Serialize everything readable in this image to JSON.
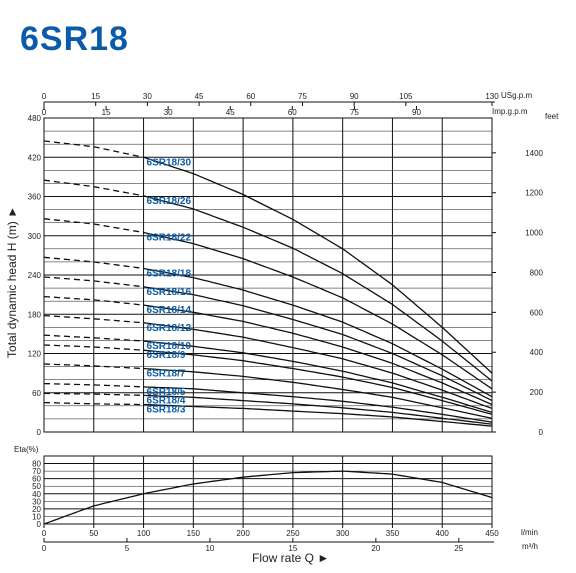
{
  "title": "6SR18",
  "chart_data": [
    {
      "type": "line",
      "ylabel": "Total dynamic head H (m) ►",
      "y_right_label": "feet",
      "ylim": [
        0,
        480
      ],
      "xlim": [
        0,
        450
      ],
      "y_ticks": [
        0,
        60,
        120,
        180,
        240,
        300,
        360,
        420,
        480
      ],
      "y_right_ticks": [
        0,
        200,
        400,
        600,
        800,
        1000,
        1200,
        1400
      ],
      "top_axis_usgpm": {
        "unit": "USg.p.m",
        "ticks": [
          0,
          15,
          30,
          45,
          60,
          75,
          90,
          105,
          130
        ]
      },
      "top_axis_impgpm": {
        "unit": "Imp.g.p.m",
        "ticks": [
          0,
          15,
          30,
          45,
          60,
          75,
          90
        ]
      },
      "x": [
        0,
        50,
        100,
        150,
        200,
        250,
        300,
        350,
        400,
        450
      ],
      "series": [
        {
          "name": "6SR18/30",
          "values": [
            445,
            436,
            420,
            395,
            363,
            325,
            280,
            225,
            160,
            90
          ]
        },
        {
          "name": "6SR18/26",
          "values": [
            385,
            375,
            361,
            341,
            313,
            281,
            242,
            195,
            139,
            78
          ]
        },
        {
          "name": "6SR18/22",
          "values": [
            326,
            318,
            305,
            288,
            265,
            237,
            205,
            165,
            118,
            66
          ]
        },
        {
          "name": "6SR18/18",
          "values": [
            267,
            260,
            250,
            236,
            217,
            194,
            168,
            135,
            96,
            54
          ]
        },
        {
          "name": "6SR18/16",
          "values": [
            237,
            231,
            222,
            210,
            193,
            172,
            149,
            120,
            86,
            48
          ]
        },
        {
          "name": "6SR18/14",
          "values": [
            207,
            202,
            194,
            183,
            169,
            151,
            130,
            105,
            75,
            42
          ]
        },
        {
          "name": "6SR18/12",
          "values": [
            178,
            173,
            167,
            157,
            145,
            129,
            112,
            90,
            64,
            36
          ]
        },
        {
          "name": "6SR18/10",
          "values": [
            148,
            144,
            139,
            131,
            121,
            108,
            93,
            75,
            53,
            30
          ]
        },
        {
          "name": "6SR18/9",
          "values": [
            133,
            130,
            125,
            118,
            109,
            97,
            84,
            68,
            48,
            27
          ]
        },
        {
          "name": "6SR18/7",
          "values": [
            104,
            101,
            97,
            92,
            85,
            76,
            65,
            53,
            37,
            21
          ]
        },
        {
          "name": "6SR18/5",
          "values": [
            74,
            72,
            69,
            66,
            60,
            54,
            47,
            38,
            27,
            15
          ]
        },
        {
          "name": "6SR18/4",
          "values": [
            59,
            58,
            56,
            53,
            48,
            43,
            37,
            30,
            21,
            12
          ]
        },
        {
          "name": "6SR18/3",
          "values": [
            45,
            43,
            42,
            39,
            36,
            32,
            28,
            23,
            16,
            9
          ]
        }
      ]
    },
    {
      "type": "line",
      "ylabel": "Eta(%)",
      "xlabel": "Flow rate Q ►",
      "ylim": [
        0,
        90
      ],
      "xlim": [
        0,
        450
      ],
      "y_ticks": [
        0,
        10,
        20,
        30,
        40,
        50,
        60,
        70,
        80
      ],
      "x_ticks_lmin": {
        "unit": "l/min",
        "ticks": [
          0,
          50,
          100,
          150,
          200,
          250,
          300,
          350,
          400,
          450
        ]
      },
      "x_ticks_m3h": {
        "unit": "m³/h",
        "ticks": [
          0,
          5,
          10,
          15,
          20,
          25
        ]
      },
      "x": [
        0,
        50,
        100,
        150,
        200,
        250,
        300,
        350,
        400,
        450
      ],
      "series": [
        {
          "values": [
            0,
            24,
            40,
            53,
            62,
            68,
            70,
            66,
            55,
            35
          ]
        }
      ]
    }
  ]
}
